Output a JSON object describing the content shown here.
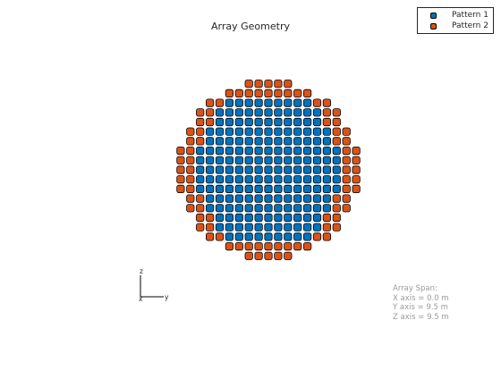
{
  "chart_data": {
    "type": "scatter",
    "title": "Array Geometry",
    "legend_position": "top-right",
    "grid": false,
    "rings": 9,
    "spacing_m": 0.5,
    "series": [
      {
        "name": "Pattern 1",
        "color": "#0072bd",
        "region": "inner rows, rings 0-7",
        "count": 213
      },
      {
        "name": "Pattern 2",
        "color": "#d95319",
        "region": "outer border",
        "count": 120
      }
    ],
    "axes_triad": {
      "x": "x",
      "y": "y",
      "z": "z"
    },
    "span": {
      "heading": "Array Span:",
      "x": "X axis = 0.0 m",
      "y": "Y axis = 9.5 m",
      "z": "Z axis = 9.5 m"
    }
  }
}
